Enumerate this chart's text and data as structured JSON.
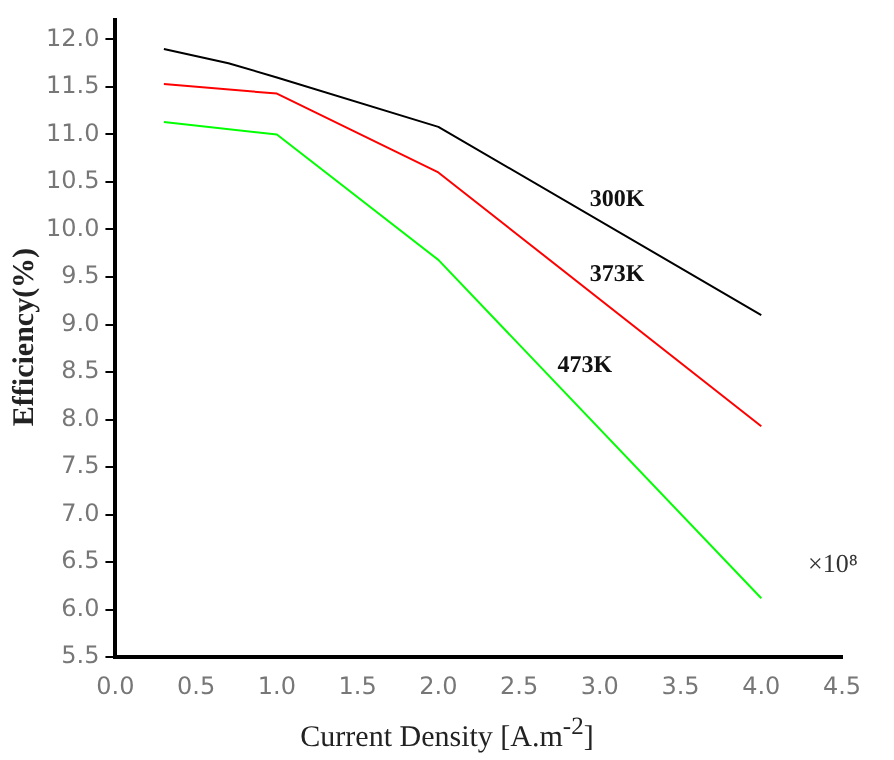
{
  "chart_data": {
    "type": "line",
    "xlabel": "Current Density [A.m$^{-2}$]",
    "ylabel": "Efficiency(%)",
    "xlim": [
      0,
      4.5
    ],
    "xticks": [
      {
        "value": 0,
        "label": "0.0"
      },
      0.5,
      {
        "value": 1,
        "label": "1.0"
      },
      1.5,
      {
        "value": 2,
        "label": "2.0"
      },
      2.5,
      {
        "value": 3,
        "label": "3.0"
      },
      3.5,
      {
        "value": 4,
        "label": "4.0"
      },
      4.5
    ],
    "ylim": [
      5.5,
      12.2
    ],
    "yticks": [
      5.5,
      {
        "value": 6,
        "label": "6.0"
      },
      6.5,
      {
        "value": 7,
        "label": "7.0"
      },
      7.5,
      {
        "value": 8,
        "label": "8.0"
      },
      8.5,
      {
        "value": 9,
        "label": "9.0"
      },
      9.5,
      {
        "value": 10,
        "label": "10.0"
      },
      10.5,
      {
        "value": 11,
        "label": "11.0"
      },
      11.5,
      {
        "value": 12,
        "label": "12.0"
      }
    ],
    "annotations": [
      "×10⁸"
    ],
    "grid": false,
    "legend": false,
    "marker": "none",
    "line_style": "solid",
    "series": [
      {
        "name": "300K",
        "color": "#000000",
        "x": [
          0.3,
          0.7,
          1,
          2,
          4
        ],
        "values": [
          11.9,
          11.75,
          11.6,
          11.08,
          9.1
        ]
      },
      {
        "name": "373K",
        "color": "#ff0000",
        "x": [
          0.3,
          1,
          2,
          4
        ],
        "values": [
          11.53,
          11.43,
          10.6,
          7.93
        ]
      },
      {
        "name": "473K",
        "color": "#00ff00",
        "x": [
          0.3,
          1,
          2,
          4
        ],
        "values": [
          11.13,
          11.0,
          9.68,
          6.12
        ]
      }
    ]
  }
}
